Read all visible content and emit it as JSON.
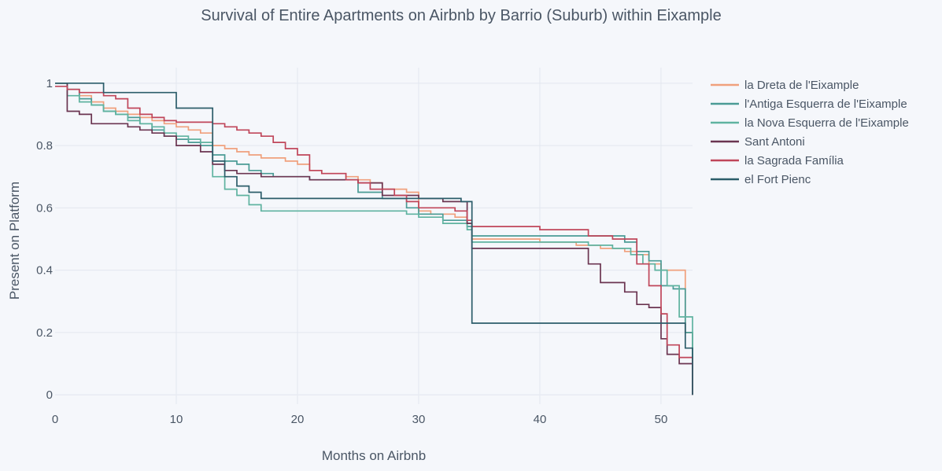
{
  "chart_data": {
    "type": "line",
    "title": "Survival of Entire Apartments on Airbnb by Barrio (Suburb) within Eixample",
    "xlabel": "Months on Airbnb",
    "ylabel": "Present on Platform",
    "xlim": [
      0,
      52.6
    ],
    "ylim": [
      -0.03,
      1.05
    ],
    "xticks": [
      0,
      10,
      20,
      30,
      40,
      50
    ],
    "yticks": [
      0,
      0.2,
      0.4,
      0.6,
      0.8,
      1
    ],
    "ytick_labels": [
      "0",
      "0.2",
      "0.4",
      "0.6",
      "0.8",
      "1"
    ],
    "grid": true,
    "legend_position": "top-right, outside plot",
    "series": [
      {
        "name": "la Dreta de l'Eixample",
        "color": "#f0a07c",
        "points": [
          [
            0,
            1.0
          ],
          [
            1,
            0.98
          ],
          [
            2,
            0.96
          ],
          [
            3,
            0.94
          ],
          [
            4,
            0.92
          ],
          [
            5,
            0.91
          ],
          [
            6,
            0.9
          ],
          [
            7,
            0.89
          ],
          [
            8,
            0.88
          ],
          [
            9,
            0.87
          ],
          [
            10,
            0.86
          ],
          [
            11,
            0.85
          ],
          [
            12,
            0.84
          ],
          [
            13,
            0.8
          ],
          [
            14,
            0.79
          ],
          [
            15,
            0.78
          ],
          [
            16,
            0.77
          ],
          [
            17,
            0.76
          ],
          [
            19,
            0.75
          ],
          [
            20,
            0.74
          ],
          [
            21,
            0.72
          ],
          [
            22,
            0.71
          ],
          [
            24,
            0.7
          ],
          [
            25,
            0.69
          ],
          [
            26,
            0.68
          ],
          [
            27,
            0.66
          ],
          [
            29,
            0.65
          ],
          [
            30,
            0.59
          ],
          [
            31,
            0.58
          ],
          [
            33,
            0.57
          ],
          [
            34,
            0.55
          ],
          [
            34.4,
            0.5
          ],
          [
            40,
            0.49
          ],
          [
            43,
            0.48
          ],
          [
            45,
            0.47
          ],
          [
            47,
            0.46
          ],
          [
            48,
            0.45
          ],
          [
            49,
            0.42
          ],
          [
            50,
            0.4
          ],
          [
            51.5,
            0.4
          ],
          [
            52,
            0.2
          ],
          [
            52.6,
            0.0
          ]
        ]
      },
      {
        "name": "l'Antiga Esquerra de l'Eixample",
        "color": "#4a9b95",
        "points": [
          [
            0,
            1.0
          ],
          [
            1,
            0.98
          ],
          [
            2,
            0.95
          ],
          [
            3,
            0.93
          ],
          [
            4,
            0.91
          ],
          [
            5,
            0.9
          ],
          [
            6,
            0.89
          ],
          [
            7,
            0.87
          ],
          [
            8,
            0.85
          ],
          [
            9,
            0.83
          ],
          [
            10,
            0.82
          ],
          [
            11,
            0.81
          ],
          [
            12,
            0.8
          ],
          [
            13,
            0.77
          ],
          [
            14,
            0.75
          ],
          [
            15,
            0.74
          ],
          [
            16,
            0.72
          ],
          [
            17,
            0.71
          ],
          [
            18,
            0.7
          ],
          [
            21,
            0.69
          ],
          [
            25,
            0.65
          ],
          [
            27,
            0.63
          ],
          [
            29,
            0.6
          ],
          [
            30,
            0.58
          ],
          [
            32,
            0.56
          ],
          [
            34,
            0.54
          ],
          [
            34.4,
            0.51
          ],
          [
            47,
            0.49
          ],
          [
            48,
            0.46
          ],
          [
            49,
            0.43
          ],
          [
            50,
            0.35
          ],
          [
            51,
            0.34
          ],
          [
            52,
            0.2
          ],
          [
            52.6,
            0.0
          ]
        ]
      },
      {
        "name": "la Nova Esquerra de l'Eixample",
        "color": "#5fb3a0",
        "points": [
          [
            0,
            1.0
          ],
          [
            1,
            0.96
          ],
          [
            2,
            0.94
          ],
          [
            3,
            0.93
          ],
          [
            4,
            0.91
          ],
          [
            5,
            0.9
          ],
          [
            6,
            0.88
          ],
          [
            7,
            0.87
          ],
          [
            8,
            0.86
          ],
          [
            9,
            0.84
          ],
          [
            10,
            0.83
          ],
          [
            11,
            0.82
          ],
          [
            12,
            0.81
          ],
          [
            13,
            0.7
          ],
          [
            14,
            0.66
          ],
          [
            15,
            0.64
          ],
          [
            16,
            0.61
          ],
          [
            17,
            0.59
          ],
          [
            25,
            0.59
          ],
          [
            29,
            0.58
          ],
          [
            30,
            0.57
          ],
          [
            32,
            0.55
          ],
          [
            34,
            0.53
          ],
          [
            34.4,
            0.49
          ],
          [
            44,
            0.48
          ],
          [
            46,
            0.47
          ],
          [
            47.5,
            0.45
          ],
          [
            48.5,
            0.42
          ],
          [
            49.5,
            0.4
          ],
          [
            50.5,
            0.35
          ],
          [
            51.5,
            0.25
          ],
          [
            52.6,
            0.0
          ]
        ]
      },
      {
        "name": "Sant Antoni",
        "color": "#6b3551",
        "points": [
          [
            0,
            1.0
          ],
          [
            1,
            0.91
          ],
          [
            2,
            0.9
          ],
          [
            3,
            0.87
          ],
          [
            6,
            0.86
          ],
          [
            7,
            0.85
          ],
          [
            8,
            0.84
          ],
          [
            9,
            0.83
          ],
          [
            10,
            0.8
          ],
          [
            12,
            0.78
          ],
          [
            13,
            0.74
          ],
          [
            14,
            0.72
          ],
          [
            15,
            0.71
          ],
          [
            17,
            0.7
          ],
          [
            21,
            0.69
          ],
          [
            25,
            0.68
          ],
          [
            27,
            0.64
          ],
          [
            30,
            0.63
          ],
          [
            32,
            0.62
          ],
          [
            34,
            0.55
          ],
          [
            34.4,
            0.47
          ],
          [
            44,
            0.42
          ],
          [
            45,
            0.36
          ],
          [
            47,
            0.33
          ],
          [
            48,
            0.29
          ],
          [
            49,
            0.28
          ],
          [
            50,
            0.18
          ],
          [
            50.5,
            0.13
          ],
          [
            51.5,
            0.1
          ],
          [
            52.6,
            0.0
          ]
        ]
      },
      {
        "name": "la Sagrada Família",
        "color": "#c0465a",
        "points": [
          [
            0,
            0.99
          ],
          [
            1,
            0.98
          ],
          [
            2,
            0.97
          ],
          [
            4,
            0.96
          ],
          [
            5,
            0.95
          ],
          [
            6,
            0.92
          ],
          [
            7,
            0.9
          ],
          [
            8,
            0.89
          ],
          [
            9,
            0.88
          ],
          [
            10,
            0.875
          ],
          [
            13,
            0.87
          ],
          [
            14,
            0.86
          ],
          [
            15,
            0.85
          ],
          [
            16,
            0.84
          ],
          [
            17,
            0.83
          ],
          [
            18,
            0.81
          ],
          [
            19,
            0.79
          ],
          [
            20,
            0.77
          ],
          [
            21,
            0.72
          ],
          [
            22,
            0.71
          ],
          [
            24,
            0.69
          ],
          [
            25,
            0.68
          ],
          [
            26,
            0.66
          ],
          [
            28,
            0.64
          ],
          [
            29,
            0.62
          ],
          [
            30,
            0.6
          ],
          [
            33,
            0.59
          ],
          [
            34,
            0.56
          ],
          [
            34.4,
            0.54
          ],
          [
            40,
            0.53
          ],
          [
            44,
            0.51
          ],
          [
            46,
            0.5
          ],
          [
            48,
            0.42
          ],
          [
            49,
            0.35
          ],
          [
            50,
            0.26
          ],
          [
            50.5,
            0.16
          ],
          [
            51.5,
            0.12
          ],
          [
            52.6,
            0.0
          ]
        ]
      },
      {
        "name": "el Fort Pienc",
        "color": "#2c5d6a",
        "points": [
          [
            0,
            1.0
          ],
          [
            4,
            0.97
          ],
          [
            10,
            0.92
          ],
          [
            13,
            0.75
          ],
          [
            14,
            0.7
          ],
          [
            15,
            0.67
          ],
          [
            16,
            0.65
          ],
          [
            17,
            0.63
          ],
          [
            33.5,
            0.62
          ],
          [
            34.4,
            0.23
          ],
          [
            51.5,
            0.23
          ],
          [
            52,
            0.15
          ],
          [
            52.6,
            0.0
          ]
        ]
      }
    ]
  }
}
